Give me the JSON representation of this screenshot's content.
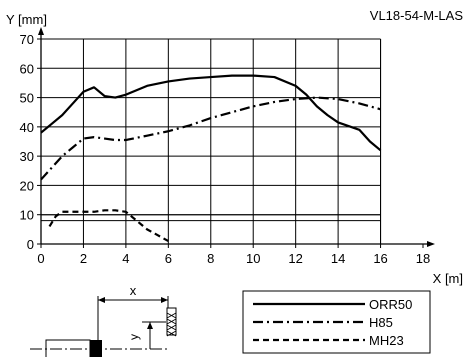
{
  "header": {
    "model": "VL18-54-M-LAS"
  },
  "chart_data": {
    "type": "line",
    "xlabel": "X [m]",
    "ylabel": "Y [mm]",
    "xlim": [
      0,
      18
    ],
    "ylim": [
      0,
      70
    ],
    "xticks": [
      "0",
      "2",
      "4",
      "6",
      "8",
      "10",
      "12",
      "14",
      "16",
      "18"
    ],
    "yticks": [
      "0",
      "10",
      "20",
      "30",
      "40",
      "50",
      "60",
      "70"
    ],
    "grid": true,
    "reference_lines_y": [
      8,
      10
    ],
    "legend_position": "bottom-right, below plot",
    "series": [
      {
        "name": "ORR50",
        "line_style": "solid",
        "x": [
          0,
          0.5,
          1,
          1.5,
          2,
          2.5,
          3,
          3.5,
          4,
          5,
          6,
          7,
          8,
          9,
          10,
          11,
          12,
          12.5,
          13,
          13.5,
          14,
          15,
          15.5,
          16
        ],
        "y": [
          38,
          41,
          44,
          48,
          52,
          53.5,
          50.5,
          50,
          51,
          54,
          55.5,
          56.5,
          57,
          57.5,
          57.5,
          57,
          54,
          51,
          47,
          44,
          41.5,
          39,
          35,
          32
        ]
      },
      {
        "name": "H85",
        "line_style": "dash-dot",
        "x": [
          0,
          0.5,
          1,
          1.5,
          2,
          2.5,
          3,
          3.5,
          4,
          5,
          6,
          7,
          8,
          9,
          10,
          11,
          12,
          13,
          14,
          15,
          16
        ],
        "y": [
          22,
          26,
          30,
          33,
          36,
          36.5,
          36,
          35.5,
          35.5,
          37,
          38.5,
          40.5,
          43,
          45,
          47,
          48.5,
          49.5,
          50,
          49.5,
          48,
          46
        ]
      },
      {
        "name": "MH23",
        "line_style": "dashed",
        "x": [
          0.4,
          0.7,
          1,
          1.5,
          2,
          2.5,
          3,
          3.5,
          4,
          4.5,
          5,
          5.5,
          6
        ],
        "y": [
          6,
          9.5,
          11,
          11,
          11,
          11,
          11.5,
          11.5,
          11,
          8,
          5,
          3,
          1
        ]
      }
    ]
  },
  "diagram": {
    "distance_label": "x",
    "offset_label": "y"
  }
}
